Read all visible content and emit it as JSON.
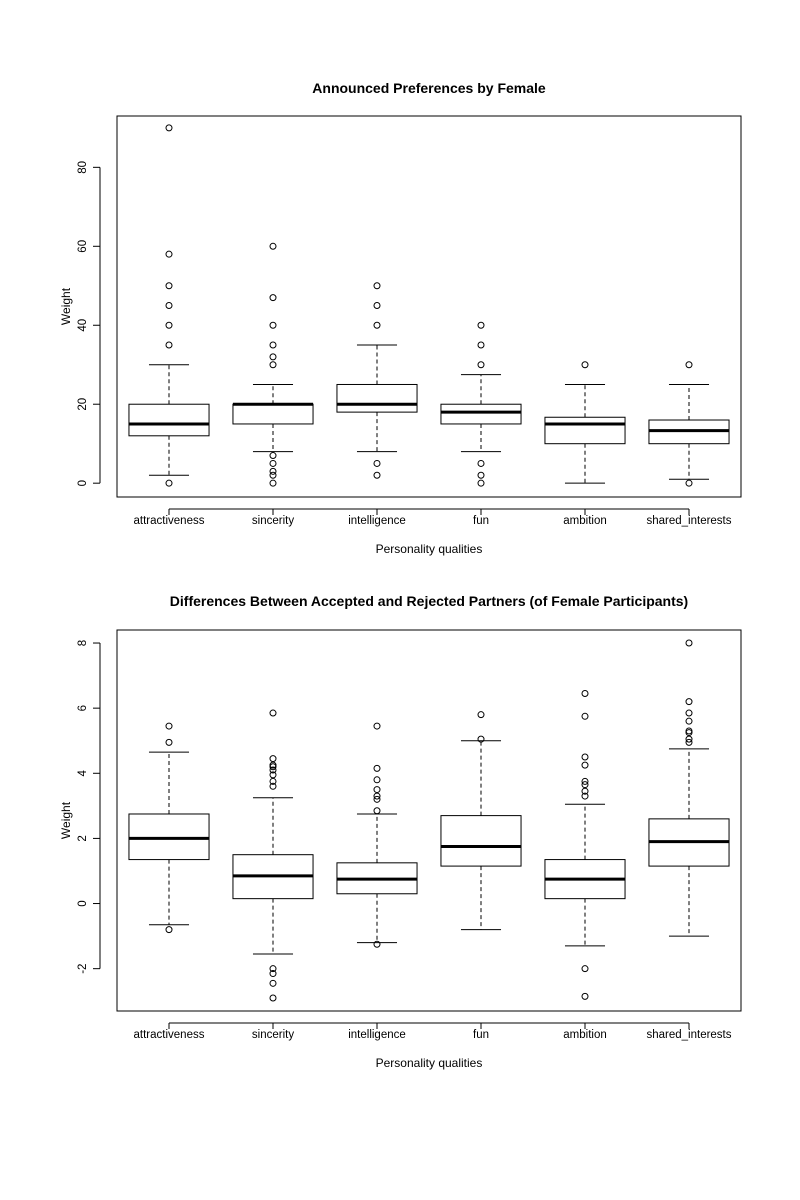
{
  "chart_data": [
    {
      "type": "box",
      "title": "Announced Preferences by Female",
      "xlabel": "Personality qualities",
      "ylabel": "Weight",
      "ylim": [
        -3.5,
        93
      ],
      "yticks": [
        0,
        20,
        40,
        60,
        80
      ],
      "categories": [
        "attractiveness",
        "sincerity",
        "intelligence",
        "fun",
        "ambition",
        "shared_interests"
      ],
      "boxes": [
        {
          "whisker_low": 2,
          "q1": 12,
          "median": 15,
          "q3": 20,
          "whisker_high": 30,
          "outliers": [
            0,
            35,
            40,
            45,
            50,
            58,
            90
          ]
        },
        {
          "whisker_low": 8,
          "q1": 15,
          "median": 20,
          "q3": 20,
          "whisker_high": 25,
          "outliers": [
            0,
            2,
            3,
            5,
            7,
            30,
            32,
            35,
            40,
            47,
            60
          ]
        },
        {
          "whisker_low": 8,
          "q1": 18,
          "median": 20,
          "q3": 25,
          "whisker_high": 35,
          "outliers": [
            2,
            5,
            40,
            45,
            50
          ]
        },
        {
          "whisker_low": 8,
          "q1": 15,
          "median": 18,
          "q3": 20,
          "whisker_high": 27.5,
          "outliers": [
            0,
            2,
            5,
            30,
            35,
            40
          ]
        },
        {
          "whisker_low": 0,
          "q1": 10,
          "median": 15,
          "q3": 16.7,
          "whisker_high": 25,
          "outliers": [
            30
          ]
        },
        {
          "whisker_low": 1,
          "q1": 10,
          "median": 13.3,
          "q3": 16,
          "whisker_high": 25,
          "outliers": [
            0,
            30
          ]
        }
      ]
    },
    {
      "type": "box",
      "title": "Differences Between Accepted and Rejected Partners (of Female Participants)",
      "xlabel": "Personality qualities",
      "ylabel": "Weight",
      "ylim": [
        -3.3,
        8.4
      ],
      "yticks": [
        -2,
        0,
        2,
        4,
        6,
        8
      ],
      "categories": [
        "attractiveness",
        "sincerity",
        "intelligence",
        "fun",
        "ambition",
        "shared_interests"
      ],
      "boxes": [
        {
          "whisker_low": -0.65,
          "q1": 1.35,
          "median": 2.0,
          "q3": 2.75,
          "whisker_high": 4.65,
          "outliers": [
            -0.8,
            4.95,
            5.45
          ]
        },
        {
          "whisker_low": -1.55,
          "q1": 0.15,
          "median": 0.85,
          "q3": 1.5,
          "whisker_high": 3.25,
          "outliers": [
            -2.9,
            -2.45,
            -2.15,
            -2.0,
            3.6,
            3.75,
            3.95,
            4.1,
            4.2,
            4.25,
            4.45,
            5.85
          ]
        },
        {
          "whisker_low": -1.2,
          "q1": 0.3,
          "median": 0.75,
          "q3": 1.25,
          "whisker_high": 2.75,
          "outliers": [
            -1.25,
            2.85,
            3.2,
            3.3,
            3.5,
            3.8,
            4.15,
            5.45
          ]
        },
        {
          "whisker_low": -0.8,
          "q1": 1.15,
          "median": 1.75,
          "q3": 2.7,
          "whisker_high": 5.0,
          "outliers": [
            5.05,
            5.8
          ]
        },
        {
          "whisker_low": -1.3,
          "q1": 0.15,
          "median": 0.75,
          "q3": 1.35,
          "whisker_high": 3.05,
          "outliers": [
            -2.85,
            -2.0,
            3.3,
            3.45,
            3.65,
            3.75,
            4.25,
            4.5,
            5.75,
            6.45
          ]
        },
        {
          "whisker_low": -1.0,
          "q1": 1.15,
          "median": 1.9,
          "q3": 2.6,
          "whisker_high": 4.75,
          "outliers": [
            4.95,
            5.05,
            5.25,
            5.3,
            5.6,
            5.85,
            6.2,
            8.0
          ]
        }
      ]
    }
  ]
}
